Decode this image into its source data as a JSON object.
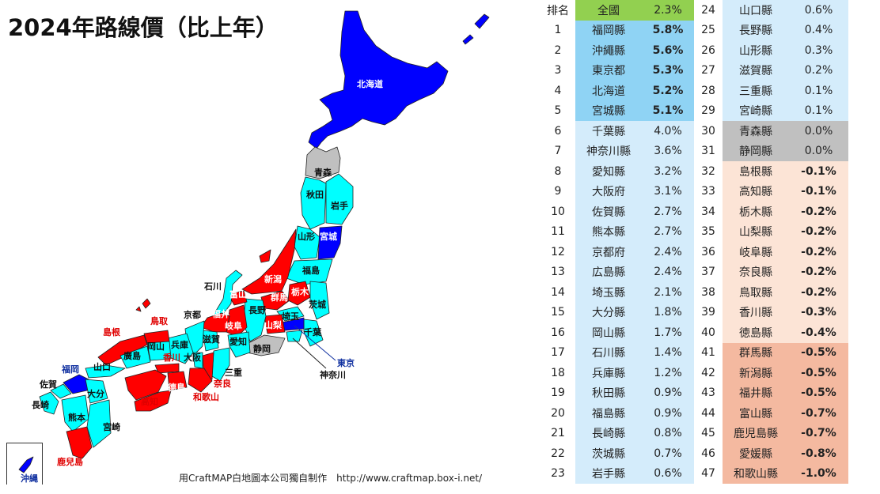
{
  "title": "2024年路線價（比上年）",
  "credit": "用CraftMAP白地圖本公司獨自制作　http://www.craftmap.box-i.net/",
  "colors": {
    "national": "#92d050",
    "top5": "#8fd3f4",
    "high": "#d4ecfb",
    "zero": "#c0c0c0",
    "neg_light": "#fce4d6",
    "neg_dark": "#f4b9a0",
    "map_blue": "#0000ff",
    "map_cyan": "#00ffff",
    "map_red": "#ff0000",
    "map_gray": "#c0c0c0"
  },
  "map_labels": {
    "hokkaido": "北海道",
    "aomori": "青森",
    "akita": "秋田",
    "iwate": "岩手",
    "yamagata": "山形",
    "miyagi": "宮城",
    "fukushima": "福島",
    "niigata": "新潟",
    "gunma": "群馬",
    "tochigi": "栃木",
    "ibaraki": "茨城",
    "toyama": "富山",
    "ishikawa": "石川",
    "fukui": "福井",
    "nagano": "長野",
    "saitama": "埼玉",
    "gifu": "岐阜",
    "yamanashi": "山梨",
    "chiba": "千葉",
    "tokyo": "東京",
    "kanagawa": "神奈川",
    "shizuoka": "静岡",
    "aichi": "愛知",
    "shiga": "滋賀",
    "kyoto": "京都",
    "mie": "三重",
    "nara": "奈良",
    "wakayama": "和歌山",
    "osaka": "大阪",
    "hyogo": "兵庫",
    "tottori": "鳥取",
    "shimane": "島根",
    "okayama": "岡山",
    "hiroshima": "廣島",
    "yamaguchi": "山口",
    "kagawa": "香川",
    "tokushima": "德島",
    "ehime": "愛媛",
    "kochi": "高知",
    "fukuoka": "福岡",
    "saga": "佐賀",
    "nagasaki": "長崎",
    "oita": "大分",
    "kumamoto": "熊本",
    "miyazaki": "宮崎",
    "kagoshima": "鹿兒島",
    "okinawa": "沖縄"
  },
  "table": {
    "header": {
      "rank": "排名",
      "pref": "全國",
      "value": "2.3%"
    },
    "rows": [
      {
        "rank": "1",
        "pref": "福岡縣",
        "value": "5.8%"
      },
      {
        "rank": "2",
        "pref": "沖繩縣",
        "value": "5.6%"
      },
      {
        "rank": "3",
        "pref": "東京都",
        "value": "5.3%"
      },
      {
        "rank": "4",
        "pref": "北海道",
        "value": "5.2%"
      },
      {
        "rank": "5",
        "pref": "宮城縣",
        "value": "5.1%"
      },
      {
        "rank": "6",
        "pref": "千葉縣",
        "value": "4.0%"
      },
      {
        "rank": "7",
        "pref": "神奈川縣",
        "value": "3.6%"
      },
      {
        "rank": "8",
        "pref": "愛知縣",
        "value": "3.2%"
      },
      {
        "rank": "9",
        "pref": "大阪府",
        "value": "3.1%"
      },
      {
        "rank": "10",
        "pref": "佐賀縣",
        "value": "2.7%"
      },
      {
        "rank": "11",
        "pref": "熊本縣",
        "value": "2.7%"
      },
      {
        "rank": "12",
        "pref": "京都府",
        "value": "2.4%"
      },
      {
        "rank": "13",
        "pref": "広島縣",
        "value": "2.4%"
      },
      {
        "rank": "14",
        "pref": "埼玉縣",
        "value": "2.1%"
      },
      {
        "rank": "15",
        "pref": "大分縣",
        "value": "1.8%"
      },
      {
        "rank": "16",
        "pref": "岡山縣",
        "value": "1.7%"
      },
      {
        "rank": "17",
        "pref": "石川縣",
        "value": "1.4%"
      },
      {
        "rank": "18",
        "pref": "兵庫縣",
        "value": "1.2%"
      },
      {
        "rank": "19",
        "pref": "秋田縣",
        "value": "0.9%"
      },
      {
        "rank": "20",
        "pref": "福島縣",
        "value": "0.9%"
      },
      {
        "rank": "21",
        "pref": "長崎縣",
        "value": "0.8%"
      },
      {
        "rank": "22",
        "pref": "茨城縣",
        "value": "0.7%"
      },
      {
        "rank": "23",
        "pref": "岩手縣",
        "value": "0.6%"
      }
    ],
    "rows2": [
      {
        "rank": "24",
        "pref": "山口縣",
        "value": "0.6%"
      },
      {
        "rank": "25",
        "pref": "長野縣",
        "value": "0.4%"
      },
      {
        "rank": "26",
        "pref": "山形縣",
        "value": "0.3%"
      },
      {
        "rank": "27",
        "pref": "滋賀縣",
        "value": "0.2%"
      },
      {
        "rank": "28",
        "pref": "三重縣",
        "value": "0.1%"
      },
      {
        "rank": "29",
        "pref": "宮崎縣",
        "value": "0.1%"
      },
      {
        "rank": "30",
        "pref": "青森縣",
        "value": "0.0%"
      },
      {
        "rank": "31",
        "pref": "静岡縣",
        "value": "0.0%"
      },
      {
        "rank": "32",
        "pref": "島根縣",
        "value": "-0.1%"
      },
      {
        "rank": "33",
        "pref": "高知縣",
        "value": "-0.1%"
      },
      {
        "rank": "34",
        "pref": "栃木縣",
        "value": "-0.2%"
      },
      {
        "rank": "35",
        "pref": "山梨縣",
        "value": "-0.2%"
      },
      {
        "rank": "36",
        "pref": "岐阜縣",
        "value": "-0.2%"
      },
      {
        "rank": "37",
        "pref": "奈良縣",
        "value": "-0.2%"
      },
      {
        "rank": "38",
        "pref": "鳥取縣",
        "value": "-0.2%"
      },
      {
        "rank": "39",
        "pref": "香川縣",
        "value": "-0.3%"
      },
      {
        "rank": "40",
        "pref": "徳島縣",
        "value": "-0.4%"
      },
      {
        "rank": "41",
        "pref": "群馬縣",
        "value": "-0.5%"
      },
      {
        "rank": "42",
        "pref": "新潟縣",
        "value": "-0.5%"
      },
      {
        "rank": "43",
        "pref": "福井縣",
        "value": "-0.5%"
      },
      {
        "rank": "44",
        "pref": "富山縣",
        "value": "-0.7%"
      },
      {
        "rank": "45",
        "pref": "鹿児島縣",
        "value": "-0.7%"
      },
      {
        "rank": "46",
        "pref": "愛媛縣",
        "value": "-0.8%"
      },
      {
        "rank": "47",
        "pref": "和歌山縣",
        "value": "-1.0%"
      }
    ]
  }
}
